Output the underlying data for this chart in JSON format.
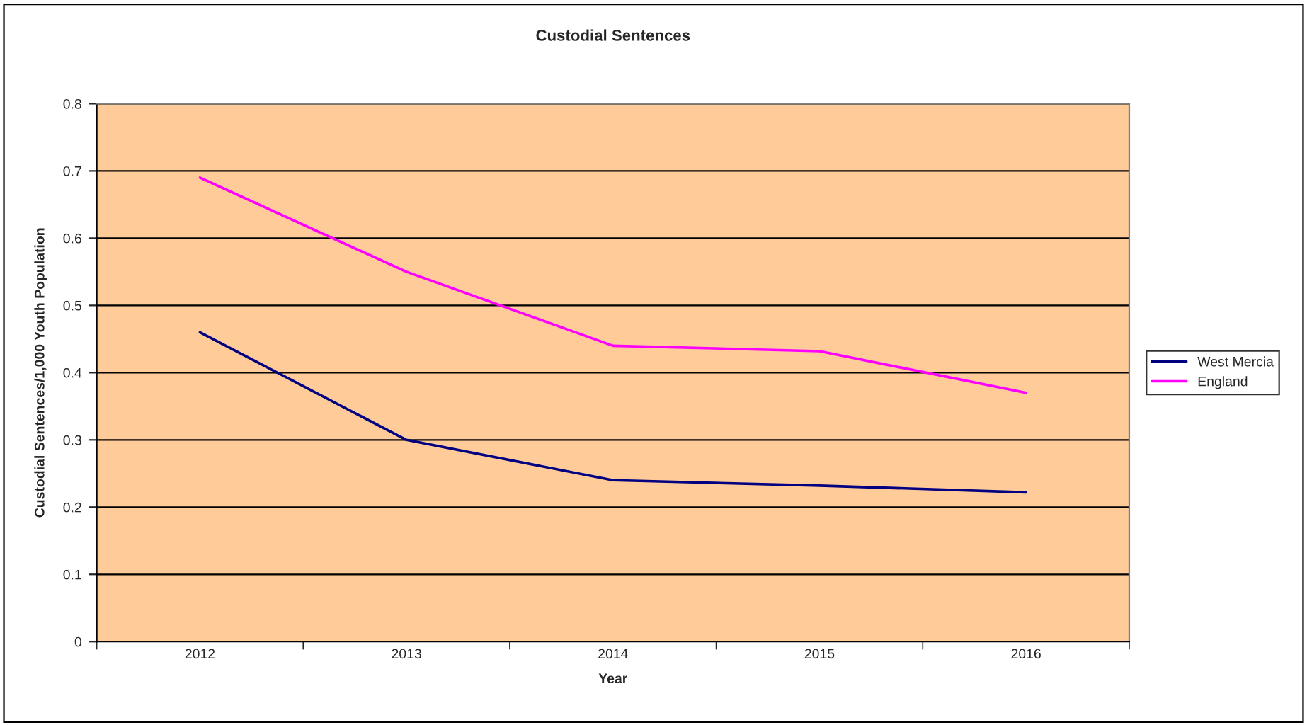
{
  "chart_data": {
    "type": "line",
    "title": "Custodial Sentences",
    "xlabel": "Year",
    "ylabel": "Custodial Sentences/1,000 Youth Population",
    "categories": [
      "2012",
      "2013",
      "2014",
      "2015",
      "2016"
    ],
    "series": [
      {
        "name": "West Mercia",
        "color": "#000080",
        "values": [
          0.46,
          0.3,
          0.24,
          0.232,
          0.222
        ]
      },
      {
        "name": "England",
        "color": "#ff00ff",
        "values": [
          0.69,
          0.55,
          0.44,
          0.432,
          0.37
        ]
      }
    ],
    "ylim": [
      0,
      0.8
    ],
    "yticks": [
      0,
      0.1,
      0.2,
      0.3,
      0.4,
      0.5,
      0.6,
      0.7,
      0.8
    ],
    "grid": "y",
    "legend": "right",
    "marker": "none",
    "line_style": "solid"
  }
}
